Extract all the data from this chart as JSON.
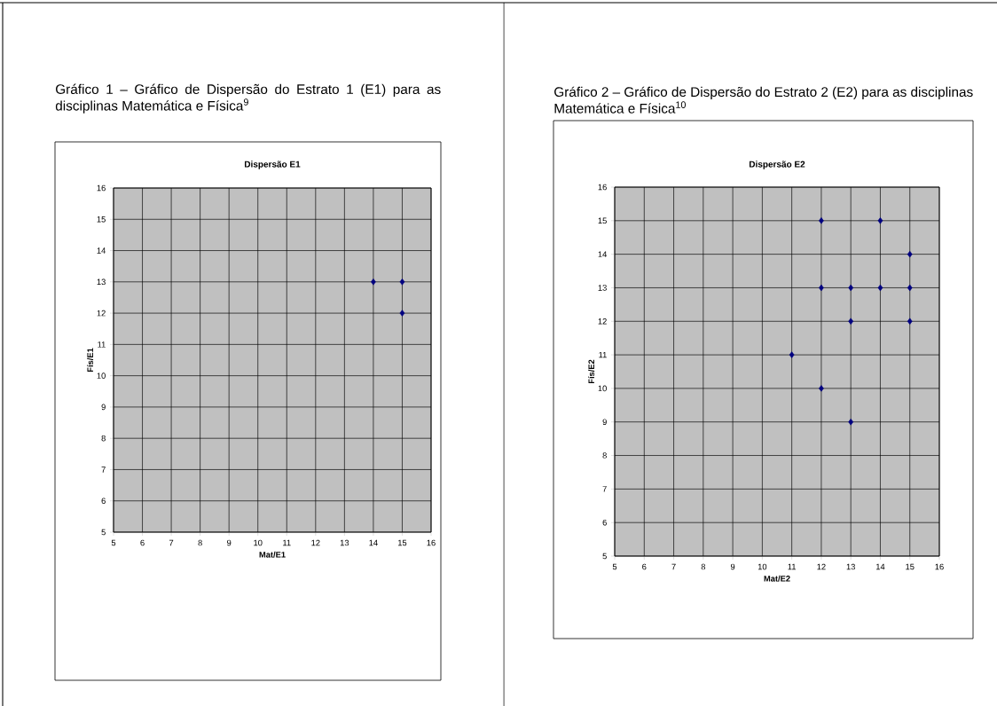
{
  "chart_data": [
    {
      "type": "scatter",
      "title": "Gráfico 1 – Gráfico de Dispersão do Estrato 1 (E1) para as disciplinas Matemática e Física$^{9}$",
      "subtitle": "Dispersão E1",
      "xlabel": "Mat/E1",
      "ylabel": "Fís/E1",
      "x": [
        14,
        15,
        15
      ],
      "values": [
        13,
        13,
        12
      ],
      "color": "#000080",
      "marker": "diamond",
      "grid": true,
      "xlim": [
        5,
        16
      ],
      "ylim": [
        5,
        16
      ],
      "xticks": [
        5,
        6,
        7,
        8,
        9,
        10,
        11,
        12,
        13,
        14,
        15,
        16
      ],
      "yticks": [
        5,
        6,
        7,
        8,
        9,
        10,
        11,
        12,
        13,
        14,
        15,
        16
      ]
    },
    {
      "type": "scatter",
      "title": "Gráfico 2 – Gráfico de Dispersão do Estrato 2 (E2) para as disciplinas Matemática e Física$^{10}$",
      "subtitle": "Dispersão E2",
      "xlabel": "Mat/E2",
      "ylabel": "Fís/E2",
      "x": [
        12,
        14,
        15,
        12,
        13,
        14,
        15,
        13,
        15,
        11,
        12,
        13
      ],
      "values": [
        15,
        15,
        14,
        13,
        13,
        13,
        13,
        12,
        12,
        11,
        10,
        9
      ],
      "color": "#000080",
      "marker": "diamond",
      "grid": true,
      "xlim": [
        5,
        16
      ],
      "ylim": [
        5,
        16
      ],
      "xticks": [
        5,
        6,
        7,
        8,
        9,
        10,
        11,
        12,
        13,
        14,
        15,
        16
      ],
      "yticks": [
        5,
        6,
        7,
        8,
        9,
        10,
        11,
        12,
        13,
        14,
        15,
        16
      ]
    }
  ]
}
